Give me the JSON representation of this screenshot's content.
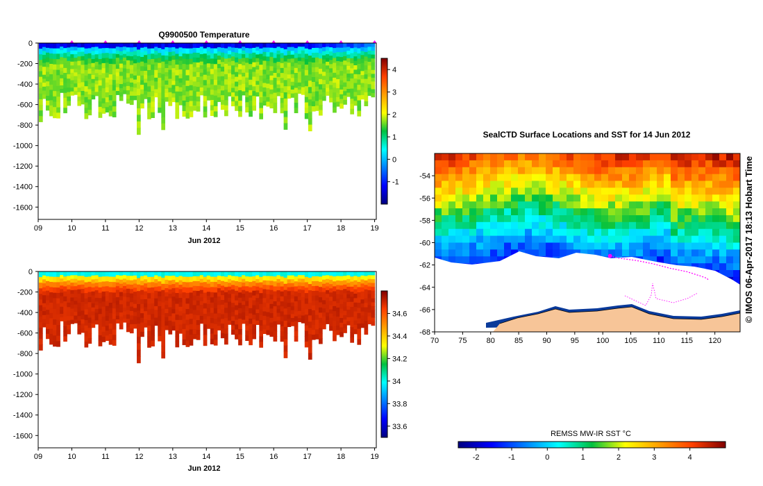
{
  "chart_data": [
    {
      "type": "heatmap",
      "title": "Q9900500  Temperature",
      "xlabel": "Jun 2012",
      "ylabel": "",
      "x_ticks": [
        "09",
        "10",
        "11",
        "12",
        "13",
        "14",
        "15",
        "16",
        "17",
        "18",
        "19"
      ],
      "xlim": [
        9,
        19.05
      ],
      "y_ticks": [
        0,
        -200,
        -400,
        -600,
        -800,
        -1000,
        -1200,
        -1400,
        -1600
      ],
      "ylim": [
        -1720,
        0
      ],
      "colorbar_ticks": [
        -1,
        0,
        1,
        2,
        3,
        4
      ],
      "colorbar_range": [
        -2,
        4.5
      ],
      "surface_value": -1.3,
      "deep_value": 1.7,
      "markers": [
        10,
        11,
        12,
        13,
        14,
        15,
        16,
        17,
        18,
        19
      ]
    },
    {
      "type": "heatmap",
      "title": "",
      "xlabel": "Jun 2012",
      "ylabel": "",
      "x_ticks": [
        "09",
        "10",
        "11",
        "12",
        "13",
        "14",
        "15",
        "16",
        "17",
        "18",
        "19"
      ],
      "xlim": [
        9,
        19.05
      ],
      "y_ticks": [
        0,
        -200,
        -400,
        -600,
        -800,
        -1000,
        -1200,
        -1400,
        -1600
      ],
      "ylim": [
        -1720,
        0
      ],
      "colorbar_ticks": [
        "34.6",
        "34.4",
        "34.2",
        "34",
        "33.8",
        "33.6"
      ],
      "colorbar_range": [
        33.5,
        34.8
      ],
      "surface_value": 34.0,
      "deep_value": 34.7
    },
    {
      "type": "heatmap",
      "title": "SealCTD Surface Locations and SST for 14 Jun 2012",
      "xlabel": "",
      "ylabel": "",
      "x_ticks": [
        70,
        75,
        80,
        85,
        90,
        95,
        100,
        105,
        110,
        115,
        120
      ],
      "xlim": [
        70,
        124.5
      ],
      "y_ticks": [
        -54,
        -56,
        -58,
        -60,
        -62,
        -64,
        -66,
        -68
      ],
      "ylim": [
        -68,
        -52
      ],
      "colorbar_label": "REMSS MW-IR SST °C",
      "colorbar_ticks": [
        -2,
        -1,
        0,
        1,
        2,
        3,
        4
      ],
      "colorbar_range": [
        -2.5,
        5
      ],
      "track_start": [
        101.3,
        -61.2
      ],
      "track_end": [
        118.9,
        -63.4
      ]
    }
  ],
  "credit": "© IMOS 06-Apr-2017 18:13 Hobart Time"
}
